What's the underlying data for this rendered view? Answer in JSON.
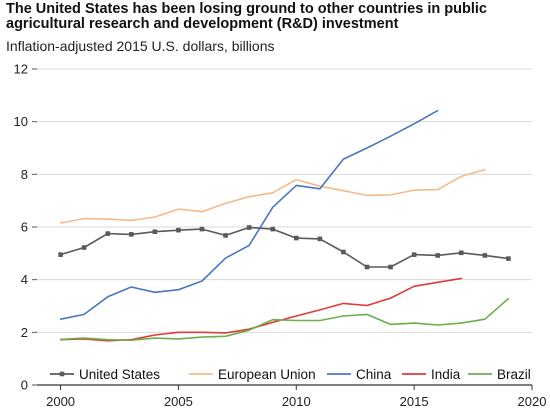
{
  "chart_data": {
    "type": "line",
    "title": "The United States has been losing ground to other countries in public agricultural research and development (R&D) investment",
    "subtitle": "Inflation-adjusted 2015 U.S. dollars, billions",
    "xlabel": "",
    "ylabel": "",
    "xlim": [
      1999,
      2020
    ],
    "ylim": [
      0,
      12
    ],
    "x_ticks": [
      2000,
      2005,
      2010,
      2015,
      2020
    ],
    "y_ticks": [
      0,
      2,
      4,
      6,
      8,
      10,
      12
    ],
    "grid": "horizontal",
    "legend_position": "bottom",
    "series": [
      {
        "name": "United States",
        "color": "#5a5a5a",
        "markers": true,
        "x": [
          2000,
          2001,
          2002,
          2003,
          2004,
          2005,
          2006,
          2007,
          2008,
          2009,
          2010,
          2011,
          2012,
          2013,
          2014,
          2015,
          2016,
          2017,
          2018,
          2019
        ],
        "values": [
          4.95,
          5.22,
          5.75,
          5.72,
          5.82,
          5.88,
          5.92,
          5.68,
          5.98,
          5.92,
          5.58,
          5.55,
          5.05,
          4.48,
          4.48,
          4.95,
          4.92,
          5.02,
          4.92,
          4.8
        ]
      },
      {
        "name": "European Union",
        "color": "#f6b98a",
        "markers": false,
        "x": [
          2000,
          2001,
          2002,
          2003,
          2004,
          2005,
          2006,
          2007,
          2008,
          2009,
          2010,
          2011,
          2012,
          2013,
          2014,
          2015,
          2016,
          2017,
          2018
        ],
        "values": [
          6.15,
          6.32,
          6.3,
          6.25,
          6.38,
          6.68,
          6.58,
          6.9,
          7.15,
          7.3,
          7.8,
          7.55,
          7.38,
          7.2,
          7.22,
          7.4,
          7.42,
          7.92,
          8.18
        ]
      },
      {
        "name": "China",
        "color": "#4a76c0",
        "markers": false,
        "x": [
          2000,
          2001,
          2002,
          2003,
          2004,
          2005,
          2006,
          2007,
          2008,
          2009,
          2010,
          2011,
          2012,
          2013,
          2014,
          2015,
          2016
        ],
        "values": [
          2.5,
          2.68,
          3.35,
          3.72,
          3.52,
          3.62,
          3.95,
          4.82,
          5.3,
          6.75,
          7.58,
          7.45,
          8.58,
          9.0,
          9.45,
          9.92,
          10.42
        ]
      },
      {
        "name": "India",
        "color": "#e03a3a",
        "markers": false,
        "x": [
          2000,
          2001,
          2002,
          2003,
          2004,
          2005,
          2006,
          2007,
          2008,
          2009,
          2010,
          2011,
          2012,
          2013,
          2014,
          2015,
          2016,
          2017
        ],
        "values": [
          1.72,
          1.75,
          1.68,
          1.72,
          1.9,
          2.0,
          2.0,
          1.98,
          2.12,
          2.38,
          2.62,
          2.85,
          3.1,
          3.02,
          3.3,
          3.75,
          3.9,
          4.05
        ]
      },
      {
        "name": "Brazil",
        "color": "#6ab04c",
        "markers": false,
        "x": [
          2000,
          2001,
          2002,
          2003,
          2004,
          2005,
          2006,
          2007,
          2008,
          2009,
          2010,
          2011,
          2012,
          2013,
          2014,
          2015,
          2016,
          2017,
          2018,
          2019
        ],
        "values": [
          1.73,
          1.78,
          1.72,
          1.7,
          1.78,
          1.75,
          1.82,
          1.85,
          2.08,
          2.48,
          2.45,
          2.45,
          2.62,
          2.68,
          2.3,
          2.35,
          2.28,
          2.35,
          2.5,
          3.28
        ]
      }
    ]
  }
}
